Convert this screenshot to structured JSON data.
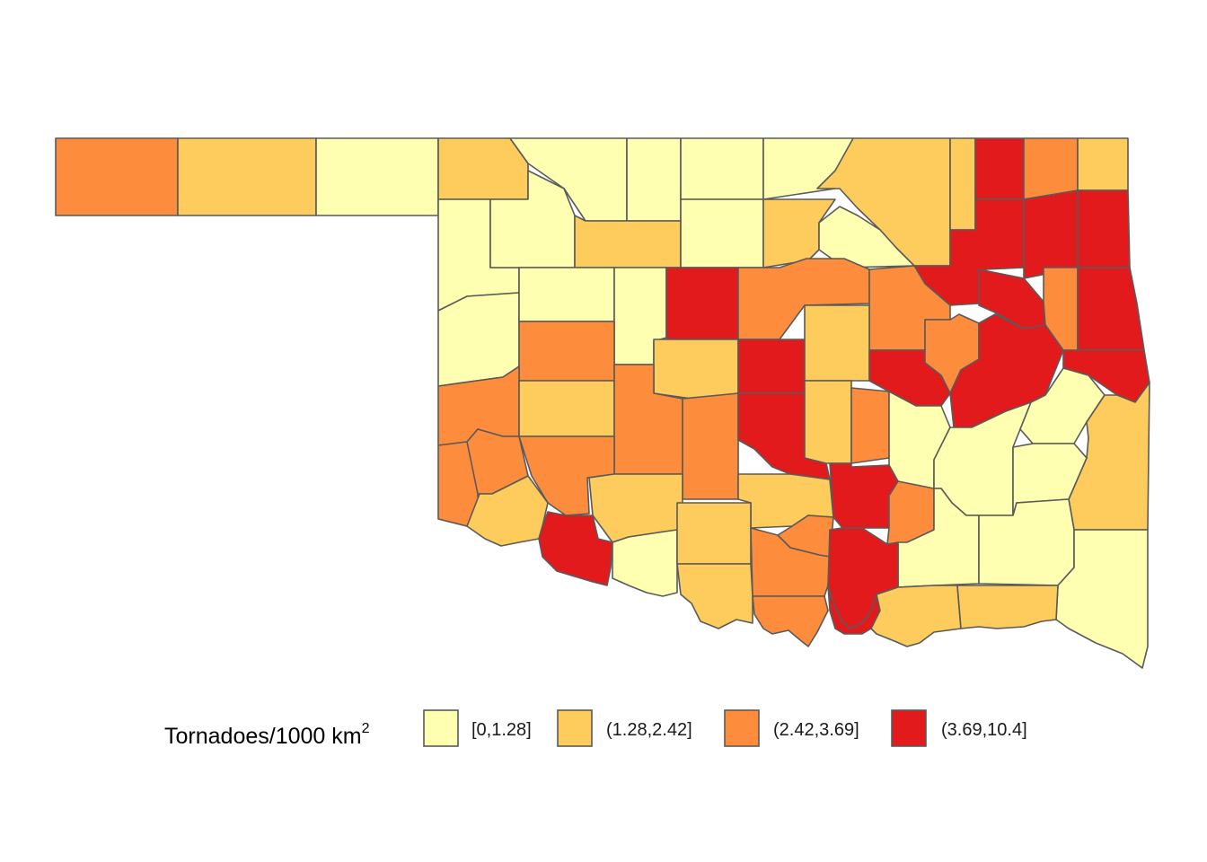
{
  "map": {
    "region": "Oklahoma",
    "unit_level": "county",
    "classes": [
      {
        "id": "c1",
        "label": "[0,1.28]",
        "color": "#FFFFB2"
      },
      {
        "id": "c2",
        "label": "(1.28,2.42]",
        "color": "#FECC5C"
      },
      {
        "id": "c3",
        "label": "(2.42,3.69]",
        "color": "#FD8D3C"
      },
      {
        "id": "c4",
        "label": "(3.69,10.4]",
        "color": "#E31A1C"
      }
    ],
    "border_color": "#5a5a5a"
  },
  "legend": {
    "title": "Tornadoes/1000 km",
    "title_superscript": "2",
    "position": "bottom"
  }
}
